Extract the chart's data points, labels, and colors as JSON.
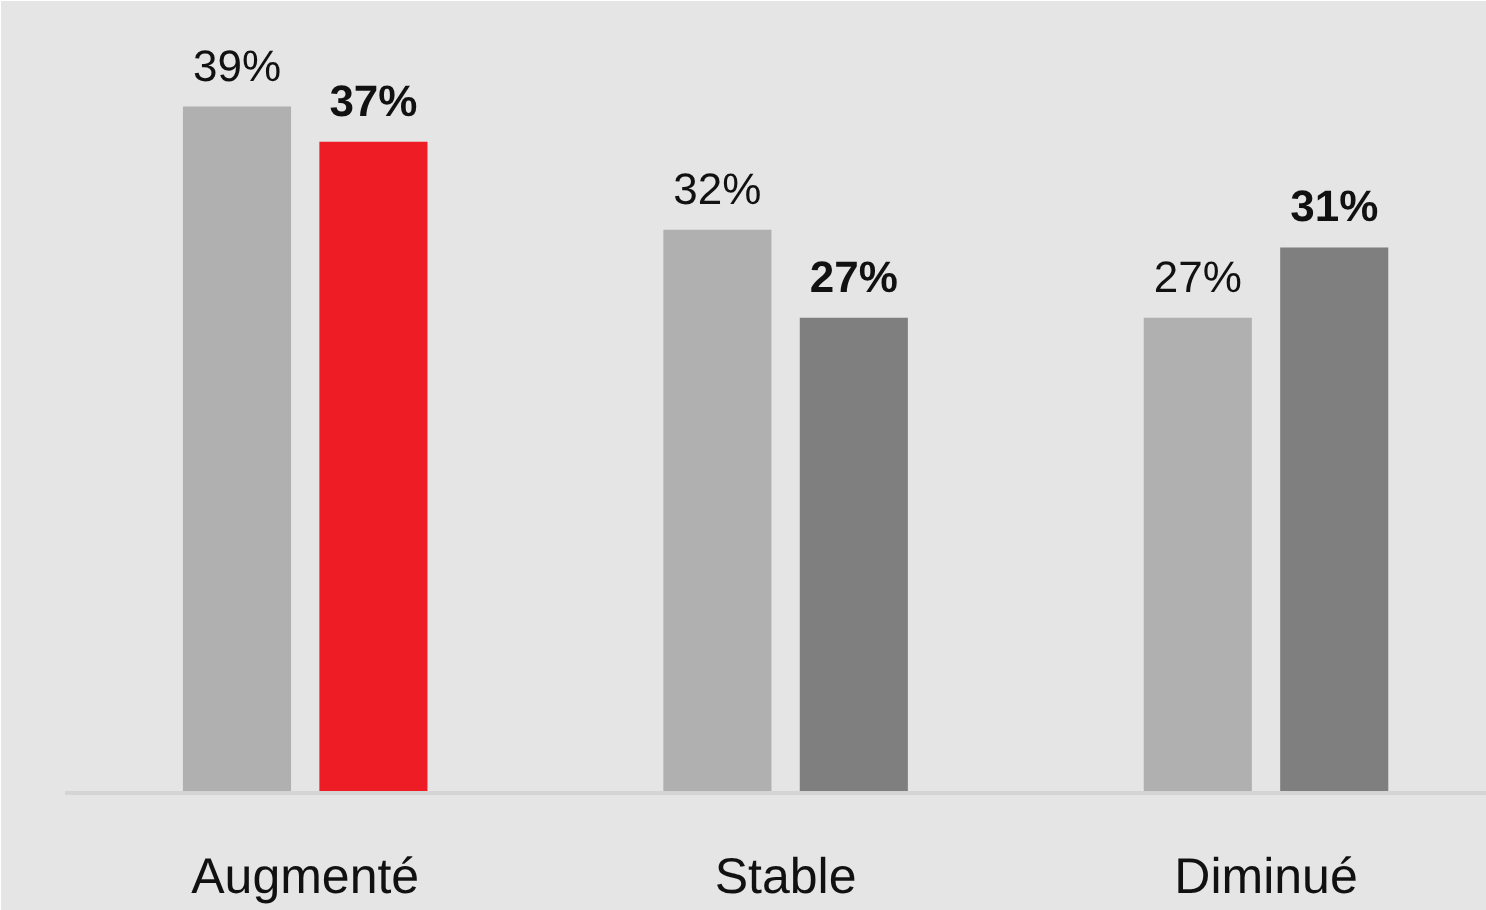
{
  "chart_data": {
    "type": "bar",
    "categories": [
      "Augmenté",
      "Stable",
      "Diminué"
    ],
    "series": [
      {
        "colors": [
          "#b0b0b0",
          "#b0b0b0",
          "#b0b0b0"
        ],
        "values": [
          39,
          32,
          27
        ],
        "value_labels": [
          "39%",
          "32%",
          "27%"
        ]
      },
      {
        "colors": [
          "#ee1c25",
          "#7f7f7f",
          "#7f7f7f"
        ],
        "values": [
          37,
          27,
          31
        ],
        "value_labels": [
          "37%",
          "27%",
          "31%"
        ]
      }
    ],
    "ylim": [
      0,
      45
    ]
  }
}
